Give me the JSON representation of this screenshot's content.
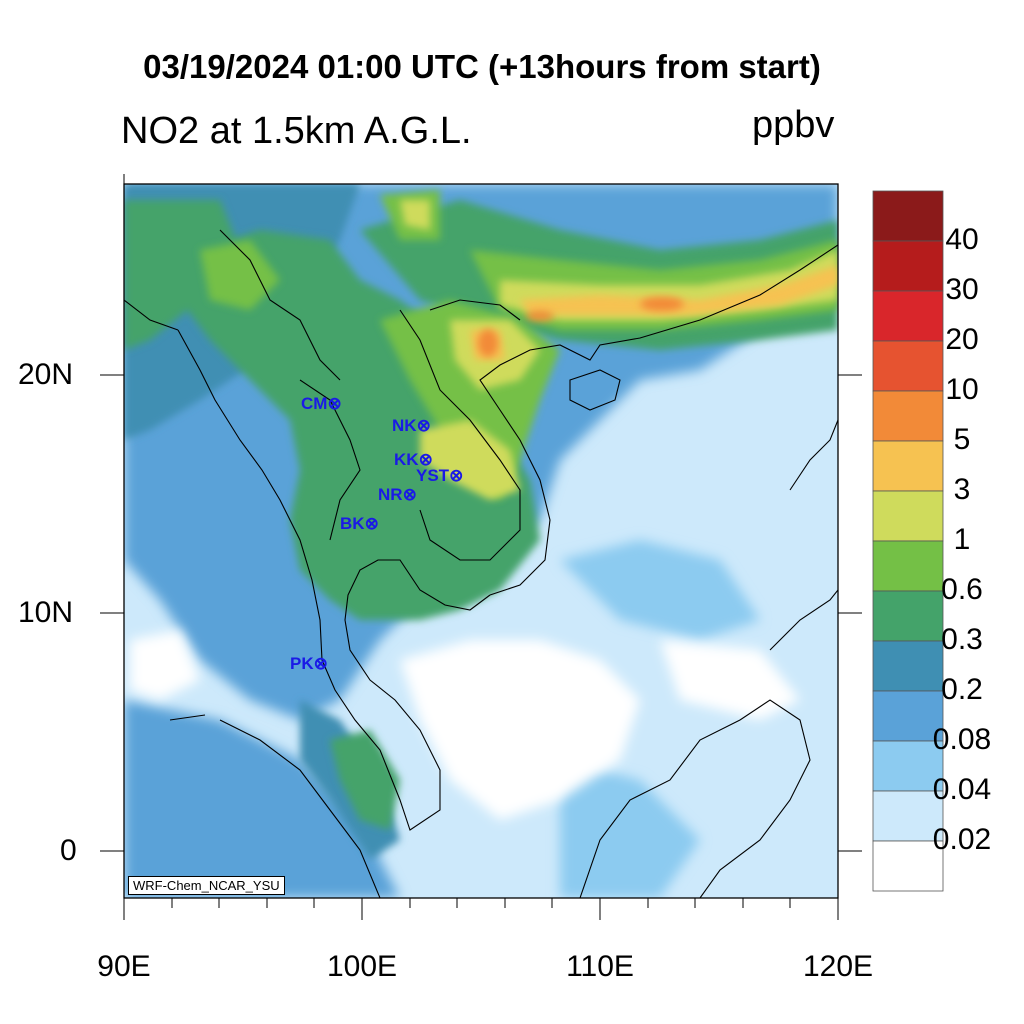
{
  "title": "03/19/2024 01:00 UTC (+13hours from start)",
  "subtitle": "NO2 at 1.5km A.G.L.",
  "units": "ppbv",
  "credit": "WRF-Chem_NCAR_YSU",
  "lat_labels": [
    "20N",
    "10N",
    "0"
  ],
  "lon_labels": [
    "90E",
    "100E",
    "110E",
    "120E"
  ],
  "colorbar": {
    "labels": [
      "40",
      "30",
      "20",
      "10",
      "5",
      "3",
      "1",
      "0.6",
      "0.3",
      "0.2",
      "0.08",
      "0.04",
      "0.02"
    ],
    "colors": [
      "#8b1a1a",
      "#b51c1c",
      "#d9262b",
      "#e65330",
      "#f28a38",
      "#f6c251",
      "#cfdb5c",
      "#74c046",
      "#44a36a",
      "#3f8fb3",
      "#5aa2d8",
      "#8ccbf0",
      "#cde9fb",
      "#ffffff"
    ]
  },
  "stations": [
    {
      "code": "CM"
    },
    {
      "code": "NK"
    },
    {
      "code": "KK"
    },
    {
      "code": "YST"
    },
    {
      "code": "NR"
    },
    {
      "code": "BK"
    },
    {
      "code": "PK"
    }
  ]
}
